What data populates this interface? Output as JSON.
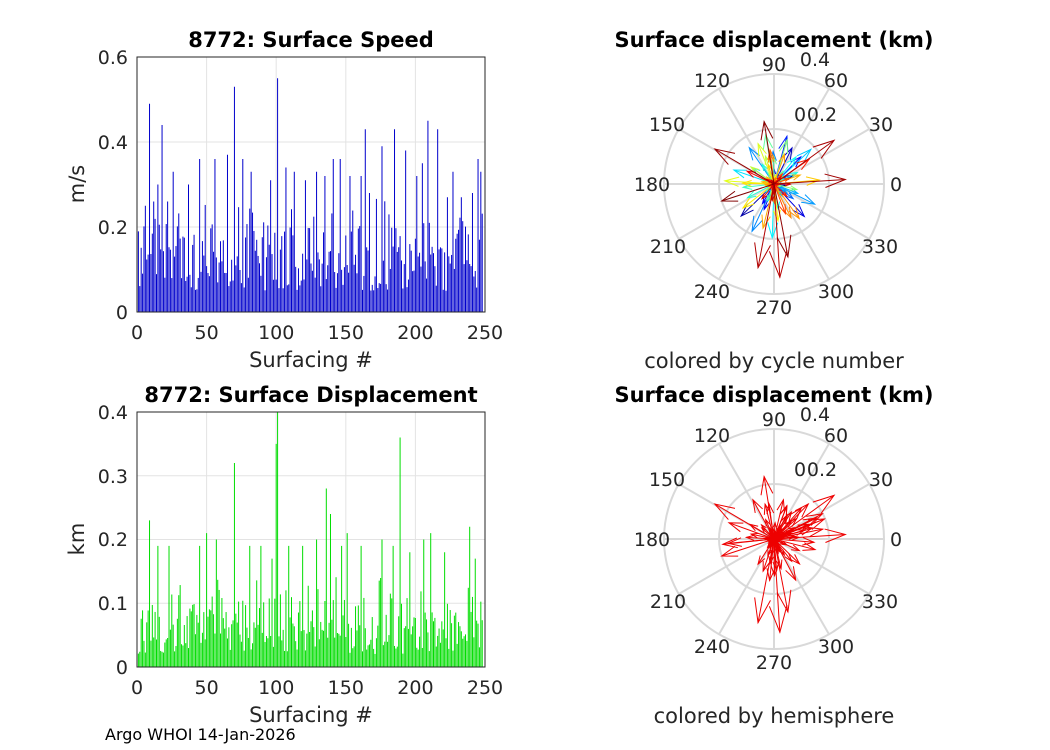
{
  "figure": {
    "footer": "Argo WHOI 14-Jan-2026"
  },
  "chart_data": [
    {
      "type": "bar",
      "title": "8772: Surface Speed",
      "xlabel": "Surfacing #",
      "ylabel": "m/s",
      "xlim": [
        0,
        250
      ],
      "ylim": [
        0,
        0.6
      ],
      "xticks": [
        "0",
        "50",
        "100",
        "150",
        "200",
        "250"
      ],
      "yticks": [
        "0",
        "0.2",
        "0.4",
        "0.6"
      ],
      "color": "#0000cc",
      "n": 248,
      "peaks": [
        [
          5,
          0.25
        ],
        [
          8,
          0.49
        ],
        [
          11,
          0.26
        ],
        [
          14,
          0.3
        ],
        [
          17,
          0.44
        ],
        [
          21,
          0.26
        ],
        [
          25,
          0.33
        ],
        [
          36,
          0.3
        ],
        [
          44,
          0.36
        ],
        [
          55,
          0.36
        ],
        [
          64,
          0.37
        ],
        [
          69,
          0.53
        ],
        [
          75,
          0.36
        ],
        [
          81,
          0.33
        ],
        [
          95,
          0.31
        ],
        [
          100,
          0.55
        ],
        [
          106,
          0.34
        ],
        [
          112,
          0.33
        ],
        [
          120,
          0.31
        ],
        [
          128,
          0.33
        ],
        [
          134,
          0.32
        ],
        [
          140,
          0.36
        ],
        [
          145,
          0.36
        ],
        [
          152,
          0.32
        ],
        [
          160,
          0.32
        ],
        [
          163,
          0.43
        ],
        [
          166,
          0.28
        ],
        [
          175,
          0.39
        ],
        [
          184,
          0.43
        ],
        [
          192,
          0.38
        ],
        [
          200,
          0.32
        ],
        [
          204,
          0.35
        ],
        [
          208,
          0.45
        ],
        [
          215,
          0.43
        ],
        [
          222,
          0.27
        ],
        [
          226,
          0.33
        ],
        [
          232,
          0.27
        ],
        [
          240,
          0.28
        ],
        [
          244,
          0.36
        ],
        [
          246,
          0.33
        ]
      ],
      "base_range": [
        0.05,
        0.28
      ]
    },
    {
      "type": "bar",
      "title": "8772: Surface Displacement",
      "xlabel": "Surfacing #",
      "ylabel": "km",
      "xlim": [
        0,
        250
      ],
      "ylim": [
        0,
        0.4
      ],
      "xticks": [
        "0",
        "50",
        "100",
        "150",
        "200",
        "250"
      ],
      "yticks": [
        "0",
        "0.1",
        "0.2",
        "0.3",
        "0.4"
      ],
      "color": "#00dd00",
      "n": 248,
      "peaks": [
        [
          8,
          0.23
        ],
        [
          14,
          0.19
        ],
        [
          22,
          0.19
        ],
        [
          44,
          0.19
        ],
        [
          49,
          0.21
        ],
        [
          56,
          0.2
        ],
        [
          69,
          0.32
        ],
        [
          80,
          0.19
        ],
        [
          88,
          0.19
        ],
        [
          96,
          0.17
        ],
        [
          99,
          0.35
        ],
        [
          100,
          0.4
        ],
        [
          108,
          0.19
        ],
        [
          118,
          0.19
        ],
        [
          128,
          0.2
        ],
        [
          135,
          0.28
        ],
        [
          138,
          0.24
        ],
        [
          146,
          0.19
        ],
        [
          150,
          0.21
        ],
        [
          160,
          0.19
        ],
        [
          175,
          0.2
        ],
        [
          183,
          0.19
        ],
        [
          188,
          0.36
        ],
        [
          195,
          0.18
        ],
        [
          205,
          0.2
        ],
        [
          210,
          0.21
        ],
        [
          220,
          0.18
        ],
        [
          238,
          0.22
        ],
        [
          242,
          0.17
        ]
      ],
      "base_range": [
        0.02,
        0.15
      ]
    },
    {
      "type": "polar-quiver",
      "title": "Surface displacement (km)",
      "caption": "colored by cycle number",
      "rlim": [
        0,
        0.4
      ],
      "rticks": [
        "0",
        "0.2",
        "0.4"
      ],
      "angle_ticks": [
        "90",
        "60",
        "30",
        "0",
        "330",
        "300",
        "270",
        "240",
        "210",
        "180",
        "150",
        "120"
      ],
      "color_mode": "cycle",
      "n": 120
    },
    {
      "type": "polar-quiver",
      "title": "Surface displacement (km)",
      "caption": "colored by hemisphere",
      "rlim": [
        0,
        0.4
      ],
      "rticks": [
        "0",
        "0.2",
        "0.4"
      ],
      "angle_ticks": [
        "90",
        "60",
        "30",
        "0",
        "330",
        "300",
        "270",
        "240",
        "210",
        "180",
        "150",
        "120"
      ],
      "color_mode": "hemisphere",
      "color": "#ee0000",
      "n": 120
    }
  ]
}
